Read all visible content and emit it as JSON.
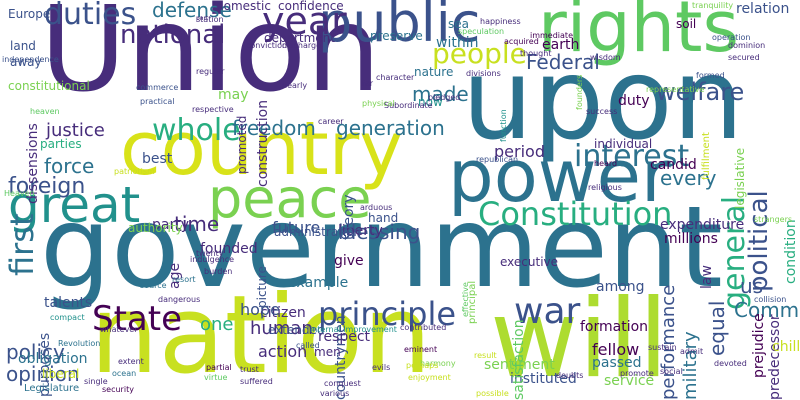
{
  "palette": {
    "dark_purple": "#440154",
    "indigo": "#472d7b",
    "blue": "#3b528b",
    "steel": "#2c728e",
    "teal": "#21918c",
    "sea_green": "#28ae80",
    "green": "#5ec962",
    "lime": "#addc30",
    "yellow": "#fde725"
  },
  "words": [
    {
      "text": "Union",
      "color": "#472d7b"
    },
    {
      "text": "government",
      "color": "#2c728e"
    },
    {
      "text": "upon",
      "color": "#2c728e"
    },
    {
      "text": "nation",
      "color": "#c8e020"
    },
    {
      "text": "country",
      "color": "#d8e219"
    },
    {
      "text": "will",
      "color": "#addc30"
    },
    {
      "text": "rights",
      "color": "#5ec962"
    },
    {
      "text": "power",
      "color": "#2c728e"
    },
    {
      "text": "peace",
      "color": "#7ad151"
    },
    {
      "text": "public",
      "color": "#3b528b"
    },
    {
      "text": "great",
      "color": "#21918c"
    },
    {
      "text": "Constitution",
      "color": "#28ae80"
    },
    {
      "text": "principle",
      "color": "#3b528b"
    },
    {
      "text": "State",
      "color": "#440154"
    },
    {
      "text": "war",
      "color": "#3b528b"
    },
    {
      "text": "year",
      "color": "#472d7b"
    },
    {
      "text": "people",
      "color": "#c8e020"
    },
    {
      "text": "general",
      "color": "#28ae80"
    },
    {
      "text": "first",
      "color": "#2c728e"
    },
    {
      "text": "whole",
      "color": "#28ae80"
    },
    {
      "text": "interest",
      "color": "#2c728e"
    },
    {
      "text": "duties",
      "color": "#3b528b"
    },
    {
      "text": "national",
      "color": "#472d7b"
    },
    {
      "text": "political",
      "color": "#3b528b"
    },
    {
      "text": "welfare",
      "color": "#3b528b"
    },
    {
      "text": "freedom",
      "color": "#2c728e"
    },
    {
      "text": "generation",
      "color": "#2c728e"
    },
    {
      "text": "Federal",
      "color": "#3b528b"
    },
    {
      "text": "made",
      "color": "#2c728e"
    },
    {
      "text": "justice",
      "color": "#472d7b"
    },
    {
      "text": "foreign",
      "color": "#3b528b"
    },
    {
      "text": "force",
      "color": "#2c728e"
    },
    {
      "text": "defense",
      "color": "#2c728e"
    },
    {
      "text": "policy",
      "color": "#3b528b"
    },
    {
      "text": "opinion",
      "color": "#3b528b"
    },
    {
      "text": "blessing",
      "color": "#3b528b"
    },
    {
      "text": "Common",
      "color": "#2c728e"
    },
    {
      "text": "time",
      "color": "#472d7b"
    },
    {
      "text": "every",
      "color": "#2c728e"
    },
    {
      "text": "equal",
      "color": "#3b528b"
    },
    {
      "text": "military",
      "color": "#2c728e"
    },
    {
      "text": "performance",
      "color": "#3b528b"
    },
    {
      "text": "period",
      "color": "#472d7b"
    },
    {
      "text": "human",
      "color": "#472d7b"
    },
    {
      "text": "action",
      "color": "#472d7b"
    },
    {
      "text": "fellow",
      "color": "#440154"
    },
    {
      "text": "passed",
      "color": "#2c728e"
    },
    {
      "text": "one",
      "color": "#28ae80"
    },
    {
      "text": "us",
      "color": "#3b528b"
    },
    {
      "text": "purposes",
      "color": "#3b528b"
    },
    {
      "text": "obligation",
      "color": "#2c728e"
    },
    {
      "text": "party",
      "color": "#472d7b"
    },
    {
      "text": "future",
      "color": "#3b528b"
    },
    {
      "text": "founded",
      "color": "#472d7b"
    },
    {
      "text": "liberty",
      "color": "#472d7b"
    },
    {
      "text": "citizen",
      "color": "#472d7b"
    },
    {
      "text": "hope",
      "color": "#3b528b"
    },
    {
      "text": "duty",
      "color": "#440154"
    },
    {
      "text": "among",
      "color": "#3b528b"
    },
    {
      "text": "expenditure",
      "color": "#472d7b"
    },
    {
      "text": "millions",
      "color": "#440154"
    },
    {
      "text": "condition",
      "color": "#28ae80"
    },
    {
      "text": "predecessor",
      "color": "#472d7b"
    },
    {
      "text": "candid",
      "color": "#440154"
    },
    {
      "text": "individual",
      "color": "#472d7b"
    },
    {
      "text": "earth",
      "color": "#440154"
    },
    {
      "text": "within",
      "color": "#2c728e"
    },
    {
      "text": "nature",
      "color": "#2c728e"
    },
    {
      "text": "now",
      "color": "#21918c"
    },
    {
      "text": "confidence",
      "color": "#472d7b"
    },
    {
      "text": "domestic",
      "color": "#472d7b"
    },
    {
      "text": "department",
      "color": "#472d7b"
    },
    {
      "text": "preserve",
      "color": "#2c728e"
    },
    {
      "text": "construction",
      "color": "#472d7b"
    },
    {
      "text": "promoted",
      "color": "#472d7b"
    },
    {
      "text": "may",
      "color": "#7ad151"
    },
    {
      "text": "Europe",
      "color": "#3b528b"
    },
    {
      "text": "land",
      "color": "#3b528b"
    },
    {
      "text": "away",
      "color": "#3b528b"
    },
    {
      "text": "dissensions",
      "color": "#472d7b"
    },
    {
      "text": "parties",
      "color": "#28ae80"
    },
    {
      "text": "best",
      "color": "#3b528b"
    },
    {
      "text": "soil",
      "color": "#440154"
    },
    {
      "text": "relation",
      "color": "#3b528b"
    },
    {
      "text": "executive",
      "color": "#472d7b"
    },
    {
      "text": "sentiment",
      "color": "#7ad151"
    },
    {
      "text": "instituted",
      "color": "#3b528b"
    },
    {
      "text": "service",
      "color": "#7ad151"
    },
    {
      "text": "formation",
      "color": "#440154"
    },
    {
      "text": "satisfaction",
      "color": "#5ec962"
    },
    {
      "text": "countrymen",
      "color": "#3b528b"
    },
    {
      "text": "theory",
      "color": "#3b528b"
    },
    {
      "text": "hand",
      "color": "#3b528b"
    },
    {
      "text": "give",
      "color": "#440154"
    },
    {
      "text": "administration",
      "color": "#3b528b"
    },
    {
      "text": "respect",
      "color": "#472d7b"
    },
    {
      "text": "extended",
      "color": "#3b528b"
    },
    {
      "text": "men",
      "color": "#472d7b"
    },
    {
      "text": "example",
      "color": "#2c728e"
    },
    {
      "text": "talents",
      "color": "#3b528b"
    },
    {
      "text": "age",
      "color": "#472d7b"
    },
    {
      "text": "picture",
      "color": "#3b528b"
    },
    {
      "text": "authority",
      "color": "#7ad151"
    },
    {
      "text": "liberal",
      "color": "#c8e020"
    },
    {
      "text": "Legislature",
      "color": "#2c728e"
    },
    {
      "text": "constitutional",
      "color": "#7ad151"
    },
    {
      "text": "fulfilment",
      "color": "#c8e020"
    },
    {
      "text": "legislative",
      "color": "#7ad151"
    },
    {
      "text": "prejudice",
      "color": "#440154"
    },
    {
      "text": "law",
      "color": "#472d7b"
    },
    {
      "text": "chill",
      "color": "#c8e020"
    },
    {
      "text": "principal",
      "color": "#7ad151"
    },
    {
      "text": "effective",
      "color": "#5ec962"
    },
    {
      "text": "contributed",
      "color": "#472d7b"
    },
    {
      "text": "eminent",
      "color": "#440154"
    },
    {
      "text": "internal improvement",
      "color": "#21918c"
    },
    {
      "text": "enjoyment",
      "color": "#c8e020"
    },
    {
      "text": "conquest",
      "color": "#472d7b"
    },
    {
      "text": "various",
      "color": "#472d7b"
    },
    {
      "text": "security",
      "color": "#440154"
    },
    {
      "text": "extent",
      "color": "#472d7b"
    },
    {
      "text": "partial",
      "color": "#440154"
    },
    {
      "text": "dangerous",
      "color": "#472d7b"
    },
    {
      "text": "resort",
      "color": "#2c728e"
    },
    {
      "text": "source",
      "color": "#2c728e"
    },
    {
      "text": "indulgence",
      "color": "#472d7b"
    },
    {
      "text": "heard",
      "color": "#440154"
    },
    {
      "text": "religious",
      "color": "#472d7b"
    },
    {
      "text": "arduous",
      "color": "#472d7b"
    },
    {
      "text": "Subordinate",
      "color": "#472d7b"
    },
    {
      "text": "republican",
      "color": "#3b528b"
    },
    {
      "text": "success",
      "color": "#472d7b"
    },
    {
      "text": "operation",
      "color": "#3b528b"
    },
    {
      "text": "dominion",
      "color": "#472d7b"
    },
    {
      "text": "founders",
      "color": "#7ad151"
    },
    {
      "text": "tranquility",
      "color": "#7ad151"
    },
    {
      "text": "happiness",
      "color": "#472d7b"
    },
    {
      "text": "speculation",
      "color": "#5ec962"
    },
    {
      "text": "acquired",
      "color": "#440154"
    },
    {
      "text": "immediate",
      "color": "#440154"
    },
    {
      "text": "representative",
      "color": "#7ad151"
    },
    {
      "text": "commerce",
      "color": "#3b528b"
    },
    {
      "text": "practical",
      "color": "#3b528b"
    },
    {
      "text": "patriotism",
      "color": "#c8e020"
    },
    {
      "text": "independence",
      "color": "#3b528b"
    },
    {
      "text": "ocean",
      "color": "#2c728e"
    },
    {
      "text": "discharge",
      "color": "#472d7b"
    },
    {
      "text": "station",
      "color": "#472d7b"
    },
    {
      "text": "part",
      "color": "#472d7b"
    },
    {
      "text": "character",
      "color": "#472d7b"
    },
    {
      "text": "nearly",
      "color": "#472d7b"
    },
    {
      "text": "far",
      "color": "#472d7b"
    },
    {
      "text": "career",
      "color": "#472d7b"
    },
    {
      "text": "heaven",
      "color": "#5ec962"
    },
    {
      "text": "devoted",
      "color": "#472d7b"
    },
    {
      "text": "strangers",
      "color": "#7ad151"
    },
    {
      "text": "collision",
      "color": "#3b528b"
    },
    {
      "text": "promote",
      "color": "#472d7b"
    },
    {
      "text": "doubts",
      "color": "#472d7b"
    },
    {
      "text": "sustain",
      "color": "#472d7b"
    },
    {
      "text": "called",
      "color": "#3b528b"
    },
    {
      "text": "trust",
      "color": "#472d7b"
    },
    {
      "text": "compact",
      "color": "#21918c"
    },
    {
      "text": "single",
      "color": "#472d7b"
    },
    {
      "text": "Revolution",
      "color": "#2c728e"
    },
    {
      "text": "burden",
      "color": "#472d7b"
    },
    {
      "text": "twenty",
      "color": "#472d7b"
    },
    {
      "text": "whatever",
      "color": "#472d7b"
    },
    {
      "text": "result",
      "color": "#c8e020"
    },
    {
      "text": "harmony",
      "color": "#7ad151"
    },
    {
      "text": "social",
      "color": "#472d7b"
    },
    {
      "text": "sea",
      "color": "#2c728e"
    },
    {
      "text": "divisions",
      "color": "#472d7b"
    },
    {
      "text": "physical",
      "color": "#7ad151"
    },
    {
      "text": "formed",
      "color": "#3b528b"
    },
    {
      "text": "respective",
      "color": "#472d7b"
    },
    {
      "text": "regular",
      "color": "#472d7b"
    },
    {
      "text": "perhaps",
      "color": "#c8e020"
    },
    {
      "text": "virtue",
      "color": "#5ec962"
    },
    {
      "text": "suffered",
      "color": "#472d7b"
    },
    {
      "text": "evils",
      "color": "#472d7b"
    },
    {
      "text": "pledged",
      "color": "#472d7b"
    },
    {
      "text": "possible",
      "color": "#c8e020"
    },
    {
      "text": "admit",
      "color": "#472d7b"
    },
    {
      "text": "Heaven",
      "color": "#5ec962"
    },
    {
      "text": "function",
      "color": "#21918c"
    },
    {
      "text": "conviction",
      "color": "#472d7b"
    },
    {
      "text": "thought",
      "color": "#472d7b"
    },
    {
      "text": "wisdom",
      "color": "#472d7b"
    },
    {
      "text": "secured",
      "color": "#472d7b"
    }
  ]
}
